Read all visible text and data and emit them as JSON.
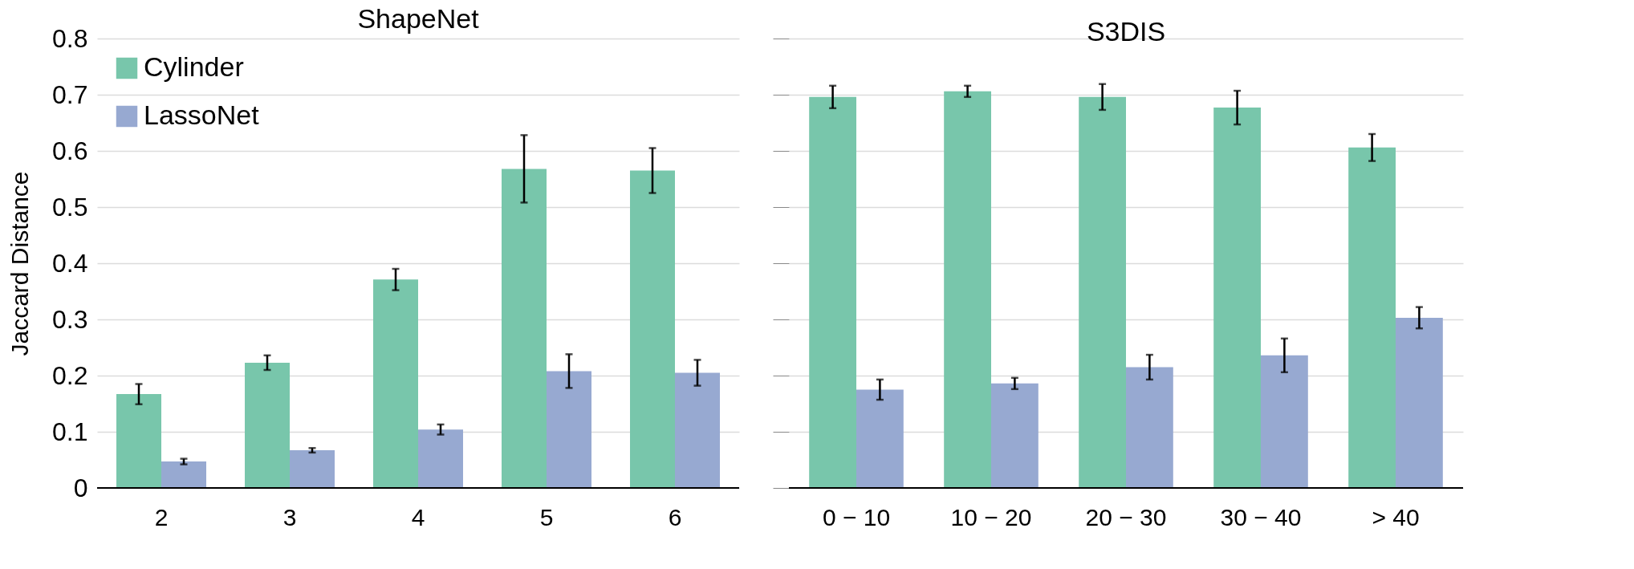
{
  "chart_data": [
    {
      "type": "bar",
      "title": "ShapeNet",
      "ylabel": "Jaccard Distance",
      "categories": [
        "2",
        "3",
        "4",
        "5",
        "6"
      ],
      "series": [
        {
          "name": "Cylinder",
          "color": "#78c6ab",
          "values": [
            0.167,
            0.223,
            0.371,
            0.568,
            0.565
          ],
          "errors": [
            0.018,
            0.013,
            0.019,
            0.06,
            0.04
          ]
        },
        {
          "name": "LassoNet",
          "color": "#97a9d1",
          "values": [
            0.047,
            0.067,
            0.104,
            0.208,
            0.205
          ],
          "errors": [
            0.005,
            0.004,
            0.009,
            0.03,
            0.023
          ]
        }
      ],
      "ylim": [
        0,
        0.8
      ],
      "yticks": [
        0,
        0.1,
        0.2,
        0.3,
        0.4,
        0.5,
        0.6,
        0.7,
        0.8
      ],
      "grid": "y",
      "legend": "top left"
    },
    {
      "type": "bar",
      "title": "S3DIS",
      "categories": [
        "0 − 10",
        "10 − 20",
        "20 − 30",
        "30 − 40",
        "> 40"
      ],
      "series": [
        {
          "color": "#78c6ab",
          "values": [
            0.696,
            0.706,
            0.696,
            0.677,
            0.606
          ],
          "errors": [
            0.02,
            0.01,
            0.023,
            0.03,
            0.024
          ]
        },
        {
          "color": "#97a9d1",
          "values": [
            0.175,
            0.186,
            0.215,
            0.236,
            0.303
          ],
          "errors": [
            0.018,
            0.01,
            0.022,
            0.03,
            0.019
          ]
        }
      ],
      "ylim": [
        0,
        0.8
      ],
      "yticks": [
        0,
        0.1,
        0.2,
        0.3,
        0.4,
        0.5,
        0.6,
        0.7,
        0.8
      ],
      "grid": "y",
      "tick_labels": "x"
    }
  ]
}
